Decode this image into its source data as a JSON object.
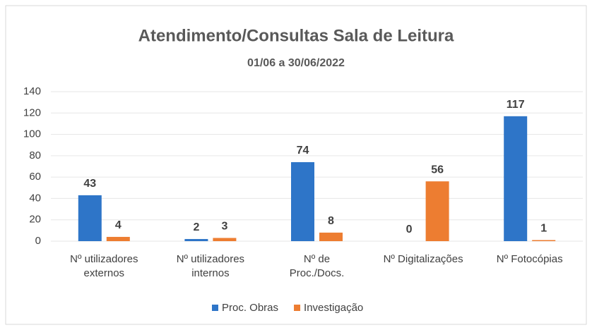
{
  "chart_data": {
    "type": "bar",
    "title": "Atendimento/Consultas Sala de Leitura",
    "subtitle": "01/06 a 30/06/2022",
    "categories": [
      "Nº utilizadores externos",
      "Nº utilizadores internos",
      "Nº de Proc./Docs.",
      "Nº Digitalizações",
      "Nº Fotocópias"
    ],
    "series": [
      {
        "name": "Proc. Obras",
        "color": "#2e75c8",
        "values": [
          43,
          2,
          74,
          0,
          117
        ]
      },
      {
        "name": "Investigação",
        "color": "#ed7d31",
        "values": [
          4,
          3,
          8,
          56,
          1
        ]
      }
    ],
    "ylim": [
      0,
      140
    ],
    "yticks": [
      0,
      20,
      40,
      60,
      80,
      100,
      120,
      140
    ],
    "grid": true,
    "legend": "bottom"
  }
}
